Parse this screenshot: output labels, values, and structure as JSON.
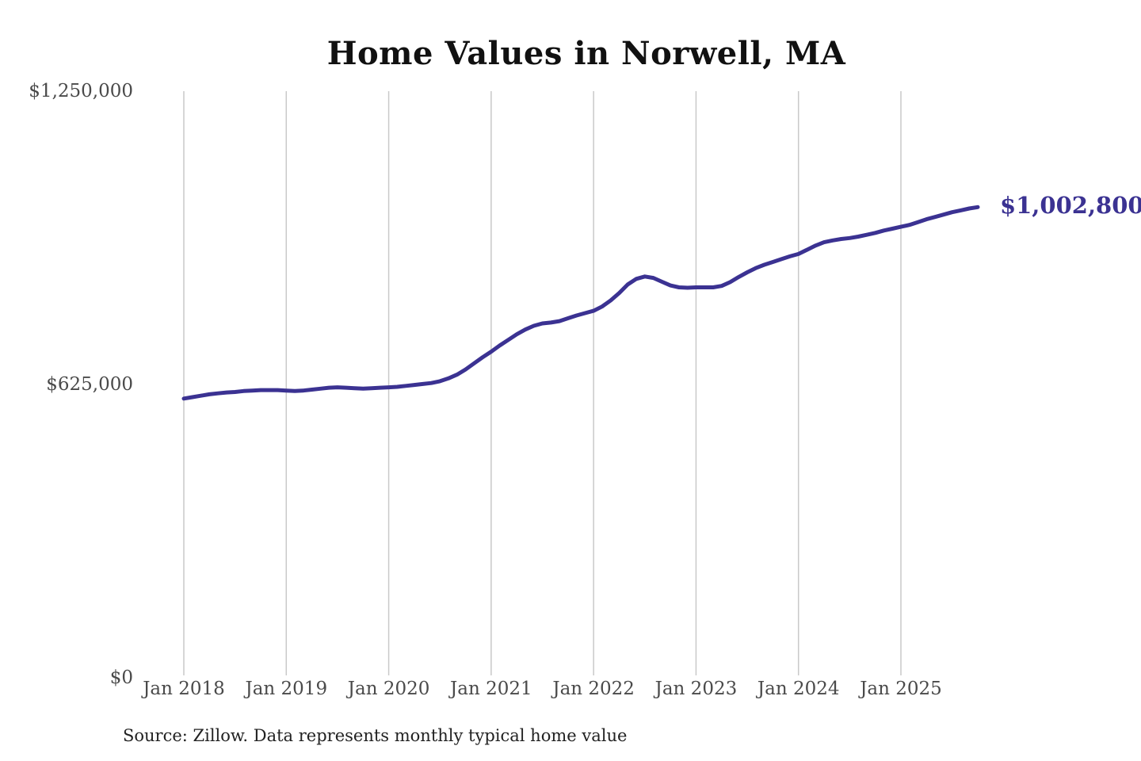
{
  "page": {
    "background": "#ffffff"
  },
  "colors": {
    "line": "#3b3292",
    "grid": "#c9c9c9",
    "axis_text": "#4a4a4a",
    "title_text": "#111111",
    "source_text": "#222222",
    "end_label_text": "#3b3292"
  },
  "chart_data": {
    "type": "line",
    "title": "Home Values in Norwell, MA",
    "source_note": "Source: Zillow. Data represents monthly typical home value",
    "end_label": "$1,002,800",
    "latest_value_usd": 1002800,
    "grid": "vertical-only",
    "legend_position": "none",
    "xlabel": "",
    "ylabel": "",
    "ylim": [
      0,
      1250000
    ],
    "y_ticks": [
      {
        "value": 0,
        "label": "$0"
      },
      {
        "value": 625000,
        "label": "$625,000"
      },
      {
        "value": 1250000,
        "label": "$1,250,000"
      }
    ],
    "x_ticks": [
      {
        "month_index": 0,
        "label": "Jan 2018"
      },
      {
        "month_index": 12,
        "label": "Jan 2019"
      },
      {
        "month_index": 24,
        "label": "Jan 2020"
      },
      {
        "month_index": 36,
        "label": "Jan 2021"
      },
      {
        "month_index": 48,
        "label": "Jan 2022"
      },
      {
        "month_index": 60,
        "label": "Jan 2023"
      },
      {
        "month_index": 72,
        "label": "Jan 2024"
      },
      {
        "month_index": 84,
        "label": "Jan 2025"
      }
    ],
    "series": [
      {
        "name": "Monthly typical home value",
        "color": "#3b3292",
        "start_month": "2018-01",
        "end_month": "2025-10",
        "values_usd": [
          595000,
          598000,
          601000,
          604000,
          606000,
          608000,
          609000,
          611000,
          612000,
          613000,
          613000,
          613000,
          612000,
          611000,
          612000,
          614000,
          616000,
          618000,
          619000,
          618000,
          617000,
          616000,
          617000,
          618000,
          619000,
          620000,
          622000,
          624000,
          626000,
          628000,
          632000,
          638000,
          646000,
          657000,
          670000,
          683000,
          695000,
          708000,
          720000,
          732000,
          742000,
          750000,
          755000,
          757000,
          760000,
          766000,
          772000,
          777000,
          782000,
          791000,
          804000,
          820000,
          838000,
          850000,
          855000,
          852000,
          844000,
          836000,
          832000,
          831000,
          832000,
          832000,
          832000,
          835000,
          843000,
          854000,
          864000,
          873000,
          880000,
          886000,
          892000,
          898000,
          903000,
          912000,
          921000,
          928000,
          932000,
          935000,
          937000,
          940000,
          944000,
          948000,
          953000,
          957000,
          961000,
          965000,
          971000,
          977000,
          982000,
          987000,
          992000,
          996000,
          1000000,
          1002800
        ]
      }
    ]
  }
}
